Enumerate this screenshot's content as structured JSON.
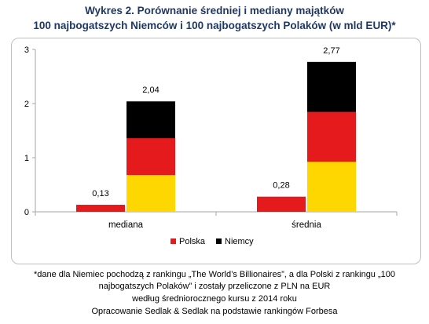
{
  "title": {
    "line1": "Wykres 2. Porównanie średniej i mediany majątków",
    "line2": "100 najbogatszych Niemców i 100 najbogatszych Polaków (w mld EUR)*"
  },
  "footnote": {
    "line1": "*dane dla Niemiec pochodzą  z rankingu „The World’s Billionaires”, a dla Polski z rankingu „100",
    "line2": "najbogatszych  Polaków”  i zostały przeliczone z PLN na EUR",
    "line3": "według średniorocznego kursu z 2014 roku",
    "line4": "Opracowanie Sedlak & Sedlak na podstawie rankingów Forbesa"
  },
  "chart_data": {
    "type": "bar",
    "title": "",
    "xlabel": "",
    "ylabel": "",
    "categories": [
      "mediana",
      "średnia"
    ],
    "series": [
      {
        "name": "Polska",
        "values": [
          0.13,
          0.28
        ],
        "labels": [
          "0,13",
          "0,28"
        ],
        "color": "#e41a1c"
      },
      {
        "name": "Niemcy",
        "values": [
          2.04,
          2.77
        ],
        "labels": [
          "2,04",
          "2,77"
        ],
        "color": "#000000"
      }
    ],
    "germany_flag_colors": [
      "#000000",
      "#e41a1c",
      "#ffd700"
    ],
    "yticks": [
      "0",
      "1",
      "2",
      "3"
    ],
    "ylim": [
      0,
      3
    ],
    "grid": false,
    "legend": "bottom-center"
  }
}
